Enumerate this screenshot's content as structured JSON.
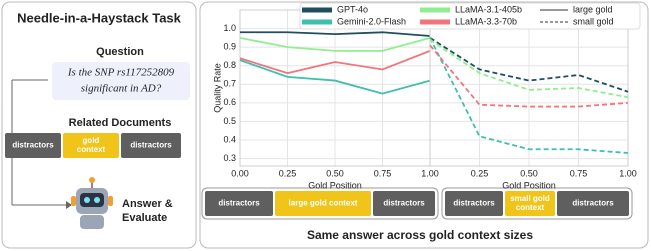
{
  "diagram": {
    "title": "Needle-in-a-Haystack Task",
    "question_heading": "Question",
    "question": [
      "Is the SNP rs117252809",
      "significant in AD?"
    ],
    "documents_heading": "Related Documents",
    "documents": [
      [
        "distractors"
      ],
      [
        "gold",
        "context"
      ],
      [
        "distractors"
      ]
    ],
    "answer": [
      "Answer &",
      "Evaluate"
    ],
    "large_row": [
      [
        "distractors"
      ],
      [
        "large gold context"
      ],
      [
        "distractors"
      ]
    ],
    "small_row": [
      [
        "distractors"
      ],
      [
        "small gold",
        "context"
      ],
      [
        "distractors"
      ]
    ],
    "caption": "Same answer across gold context sizes"
  },
  "chart_data": [
    {
      "type": "line",
      "x": [
        0,
        0.25,
        0.5,
        0.75,
        1.0
      ],
      "xlabel": "Gold Position",
      "ylabel": "Quality Rate",
      "xlim": [
        0,
        1.0
      ],
      "ylim": [
        0.26,
        1.1
      ],
      "xticks": [
        {
          "value": 0,
          "label": "0.00"
        },
        {
          "value": 0.25,
          "label": "0.25"
        },
        {
          "value": 0.5,
          "label": "0.50"
        },
        {
          "value": 0.75,
          "label": "0.75"
        },
        {
          "value": 1.0,
          "label": "1.00"
        }
      ],
      "yticks": [
        0.3,
        0.4,
        0.5,
        0.6,
        0.7,
        0.8,
        0.9,
        {
          "value": 1.0,
          "label": "1.0"
        }
      ],
      "grid": true,
      "dashed": false,
      "style_label": "large gold",
      "series": [
        {
          "name": "GPT-4o",
          "color": "#1f4e5f",
          "values": [
            0.98,
            0.98,
            0.97,
            0.98,
            0.96
          ]
        },
        {
          "name": "Gemini-2.0-Flash",
          "color": "#3fbfad",
          "values": [
            0.83,
            0.74,
            0.72,
            0.65,
            0.72
          ]
        },
        {
          "name": "LLaMA-3.1-405b",
          "color": "#90ee90",
          "values": [
            0.95,
            0.9,
            0.88,
            0.88,
            0.95
          ]
        },
        {
          "name": "LLaMA-3.3-70b",
          "color": "#f0767c",
          "values": [
            0.84,
            0.76,
            0.82,
            0.78,
            0.88
          ]
        }
      ]
    },
    {
      "type": "line",
      "x": [
        0,
        0.25,
        0.5,
        0.75,
        1.0
      ],
      "xlabel": "Gold Position",
      "xlim": [
        0,
        1.0
      ],
      "ylim": [
        0.26,
        1.1
      ],
      "xticks": [
        {
          "value": 0.25,
          "label": "0.25"
        },
        {
          "value": 0.5,
          "label": "0.50"
        },
        {
          "value": 0.75,
          "label": "0.75"
        },
        {
          "value": 1.0,
          "label": "1.00"
        }
      ],
      "grid": true,
      "dashed": true,
      "style_label": "small gold",
      "series": [
        {
          "color": "#1f4e5f",
          "values": [
            0.95,
            0.78,
            0.72,
            0.75,
            0.66
          ]
        },
        {
          "color": "#3fbfad",
          "values": [
            0.95,
            0.42,
            0.35,
            0.35,
            0.33
          ]
        },
        {
          "color": "#90ee90",
          "values": [
            0.94,
            0.76,
            0.67,
            0.68,
            0.63
          ]
        },
        {
          "color": "#f0767c",
          "values": [
            0.91,
            0.59,
            0.58,
            0.58,
            0.6
          ]
        }
      ]
    }
  ]
}
